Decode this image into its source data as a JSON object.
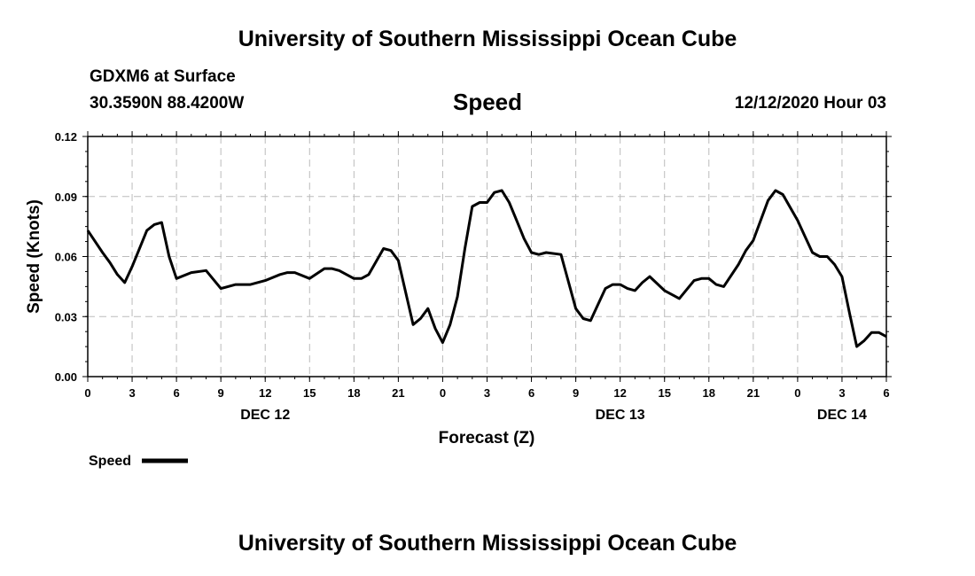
{
  "header": {
    "title": "University of Southern Mississippi Ocean Cube",
    "station": "GDXM6 at Surface",
    "coords": "30.3590N 88.4200W",
    "timestamp": "12/12/2020 Hour 03"
  },
  "footer": {
    "title": "University of Southern Mississippi Ocean Cube"
  },
  "colors": {
    "line": "#000000",
    "grid": "#bbbbbb"
  },
  "chart_data": {
    "type": "line",
    "title": "Speed",
    "xlabel": "Forecast (Z)",
    "ylabel": "Speed (Knots)",
    "ylim": [
      0,
      0.12
    ],
    "yticks": [
      "0.00",
      "0.03",
      "0.06",
      "0.09",
      "0.12"
    ],
    "xlim_hours": [
      0,
      54
    ],
    "xtick_labels": [
      "0",
      "3",
      "6",
      "9",
      "12",
      "15",
      "18",
      "21",
      "0",
      "3",
      "6",
      "9",
      "12",
      "15",
      "18",
      "21",
      "0",
      "3",
      "6"
    ],
    "day_labels": [
      {
        "label": "DEC 12",
        "hour": 12
      },
      {
        "label": "DEC 13",
        "hour": 36
      },
      {
        "label": "DEC 14",
        "hour": 51
      }
    ],
    "grid": true,
    "legend": "bottom-left",
    "series": [
      {
        "name": "Speed",
        "x": [
          0,
          1,
          1.5,
          2,
          2.5,
          3,
          4,
          4.5,
          5,
          5.5,
          6,
          7,
          8,
          9,
          10,
          11,
          12,
          13,
          13.5,
          14,
          15,
          16,
          16.5,
          17,
          18,
          18.5,
          19,
          20,
          20.5,
          21,
          22,
          22.5,
          23,
          23.5,
          24,
          24.5,
          25,
          25.5,
          26,
          26.5,
          27,
          27.5,
          28,
          28.5,
          29,
          29.5,
          30,
          30.5,
          31,
          32,
          33,
          33.5,
          34,
          34.5,
          35,
          35.5,
          36,
          36.5,
          37,
          37.5,
          38,
          39,
          40,
          41,
          41.5,
          42,
          42.5,
          43,
          44,
          44.5,
          45,
          46,
          46.5,
          47,
          48,
          48.5,
          49,
          49.5,
          50,
          50.5,
          51,
          51.5,
          52,
          52.5,
          53,
          53.5,
          54
        ],
        "values": [
          0.073,
          0.062,
          0.057,
          0.051,
          0.047,
          0.055,
          0.073,
          0.076,
          0.077,
          0.06,
          0.049,
          0.052,
          0.053,
          0.044,
          0.046,
          0.046,
          0.048,
          0.051,
          0.052,
          0.052,
          0.049,
          0.054,
          0.054,
          0.053,
          0.049,
          0.049,
          0.051,
          0.064,
          0.063,
          0.058,
          0.026,
          0.029,
          0.034,
          0.024,
          0.017,
          0.026,
          0.04,
          0.064,
          0.085,
          0.087,
          0.087,
          0.092,
          0.093,
          0.087,
          0.078,
          0.069,
          0.062,
          0.061,
          0.062,
          0.061,
          0.034,
          0.029,
          0.028,
          0.036,
          0.044,
          0.046,
          0.046,
          0.044,
          0.043,
          0.047,
          0.05,
          0.043,
          0.039,
          0.048,
          0.049,
          0.049,
          0.046,
          0.045,
          0.056,
          0.063,
          0.068,
          0.088,
          0.093,
          0.091,
          0.078,
          0.07,
          0.062,
          0.06,
          0.06,
          0.056,
          0.05,
          0.032,
          0.015,
          0.018,
          0.022,
          0.022,
          0.02
        ]
      }
    ]
  }
}
